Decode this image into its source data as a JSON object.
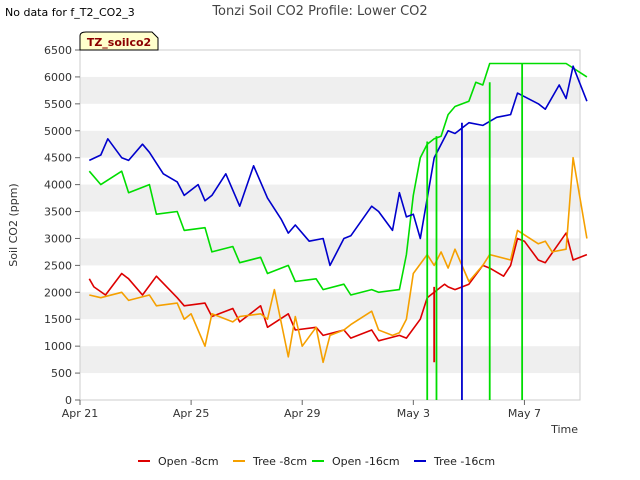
{
  "no_data_note": "No data for f_T2_CO2_3",
  "badge": {
    "label": "TZ_soilco2",
    "fill": "#ffffcc",
    "text_color": "#8b0000"
  },
  "chart_data": {
    "type": "line",
    "title": "Tonzi Soil CO2 Profile: Lower CO2",
    "xlabel": "Time",
    "ylabel": "Soil CO2 (ppm)",
    "xlim": [
      "2023-04-21",
      "2023-05-09"
    ],
    "ylim": [
      0,
      6500
    ],
    "xticks": [
      {
        "value": "2023-04-21",
        "label": "Apr 21"
      },
      {
        "value": "2023-04-25",
        "label": "Apr 25"
      },
      {
        "value": "2023-04-29",
        "label": "Apr 29"
      },
      {
        "value": "2023-05-03",
        "label": "May 3"
      },
      {
        "value": "2023-05-07",
        "label": "May 7"
      }
    ],
    "yticks": [
      0,
      500,
      1000,
      1500,
      2000,
      2500,
      3000,
      3500,
      4000,
      4500,
      5000,
      5500,
      6000,
      6500
    ],
    "grid": "horizontal bands",
    "legend_position": "bottom",
    "series": [
      {
        "name": "Open -8cm",
        "color": "#dd0000",
        "x": [
          "2023-04-21 08:00",
          "2023-04-21 12:00",
          "2023-04-21 22:00",
          "2023-04-22 12:00",
          "2023-04-22 18:00",
          "2023-04-23 06:00",
          "2023-04-23 18:00",
          "2023-04-24 12:00",
          "2023-04-24 18:00",
          "2023-04-25 12:00",
          "2023-04-25 18:00",
          "2023-04-26 12:00",
          "2023-04-26 18:00",
          "2023-04-27 12:00",
          "2023-04-27 18:00",
          "2023-04-28 12:00",
          "2023-04-28 18:00",
          "2023-04-29 12:00",
          "2023-04-29 18:00",
          "2023-04-30 12:00",
          "2023-04-30 18:00",
          "2023-05-01 12:00",
          "2023-05-01 18:00",
          "2023-05-02 12:00",
          "2023-05-02 18:00",
          "2023-05-03 06:00",
          "2023-05-03 12:00",
          "2023-05-03 18:00",
          "2023-05-04 00:00",
          "2023-05-04 03:00",
          "2023-05-04 06:00",
          "2023-05-04 12:00",
          "2023-05-05 00:00",
          "2023-05-05 12:00",
          "2023-05-05 18:00",
          "2023-05-06 06:00",
          "2023-05-06 12:00",
          "2023-05-06 18:00",
          "2023-05-07 00:00",
          "2023-05-07 12:00",
          "2023-05-07 18:00",
          "2023-05-08 12:00",
          "2023-05-08 18:00",
          "2023-05-09 06:00"
        ],
        "y": [
          2250,
          2100,
          1950,
          2350,
          2250,
          1950,
          2300,
          1900,
          1750,
          1800,
          1550,
          1700,
          1450,
          1750,
          1350,
          1600,
          1300,
          1350,
          1200,
          1300,
          1150,
          1300,
          1100,
          1200,
          1150,
          1500,
          1900,
          2000,
          2100,
          2150,
          2100,
          2050,
          2150,
          2500,
          2450,
          2300,
          2500,
          3000,
          2950,
          2600,
          2550,
          3100,
          2600,
          2700
        ]
      },
      {
        "name": "Tree -8cm",
        "color": "#f5a000",
        "x": [
          "2023-04-21 08:00",
          "2023-04-21 18:00",
          "2023-04-22 12:00",
          "2023-04-22 18:00",
          "2023-04-23 12:00",
          "2023-04-23 18:00",
          "2023-04-24 12:00",
          "2023-04-24 18:00",
          "2023-04-25 00:00",
          "2023-04-25 12:00",
          "2023-04-25 18:00",
          "2023-04-26 12:00",
          "2023-04-26 18:00",
          "2023-04-27 12:00",
          "2023-04-27 18:00",
          "2023-04-28 00:00",
          "2023-04-28 12:00",
          "2023-04-28 18:00",
          "2023-04-29 00:00",
          "2023-04-29 12:00",
          "2023-04-29 18:00",
          "2023-04-30 00:00",
          "2023-04-30 12:00",
          "2023-04-30 18:00",
          "2023-05-01 12:00",
          "2023-05-01 18:00",
          "2023-05-02 06:00",
          "2023-05-02 12:00",
          "2023-05-02 18:00",
          "2023-05-03 00:00",
          "2023-05-03 12:00",
          "2023-05-03 18:00",
          "2023-05-04 00:00",
          "2023-05-04 06:00",
          "2023-05-04 12:00",
          "2023-05-05 00:00",
          "2023-05-05 12:00",
          "2023-05-05 18:00",
          "2023-05-06 12:00",
          "2023-05-06 18:00",
          "2023-05-07 12:00",
          "2023-05-07 18:00",
          "2023-05-08 00:00",
          "2023-05-08 12:00",
          "2023-05-08 18:00",
          "2023-05-09 06:00"
        ],
        "y": [
          1950,
          1900,
          2000,
          1850,
          1950,
          1750,
          1800,
          1500,
          1600,
          1000,
          1600,
          1450,
          1550,
          1600,
          1500,
          2050,
          800,
          1550,
          1000,
          1350,
          700,
          1200,
          1300,
          1400,
          1650,
          1300,
          1200,
          1250,
          1500,
          2350,
          2700,
          2500,
          2750,
          2450,
          2800,
          2200,
          2500,
          2700,
          2600,
          3150,
          2900,
          2950,
          2750,
          2800,
          4500,
          3000
        ]
      },
      {
        "name": "Open -16cm",
        "color": "#00dd00",
        "x": [
          "2023-04-21 08:00",
          "2023-04-21 18:00",
          "2023-04-22 12:00",
          "2023-04-22 18:00",
          "2023-04-23 12:00",
          "2023-04-23 18:00",
          "2023-04-24 12:00",
          "2023-04-24 18:00",
          "2023-04-25 12:00",
          "2023-04-25 18:00",
          "2023-04-26 12:00",
          "2023-04-26 18:00",
          "2023-04-27 12:00",
          "2023-04-27 18:00",
          "2023-04-28 12:00",
          "2023-04-28 18:00",
          "2023-04-29 12:00",
          "2023-04-29 18:00",
          "2023-04-30 12:00",
          "2023-04-30 18:00",
          "2023-05-01 12:00",
          "2023-05-01 18:00",
          "2023-05-02 12:00",
          "2023-05-02 18:00",
          "2023-05-03 00:00",
          "2023-05-03 06:00",
          "2023-05-03 12:00",
          "2023-05-03 18:00",
          "2023-05-04 00:00",
          "2023-05-04 06:00",
          "2023-05-04 12:00",
          "2023-05-05 00:00",
          "2023-05-05 06:00",
          "2023-05-05 12:00",
          "2023-05-05 18:00",
          "2023-05-06 00:00",
          "2023-05-07 00:00",
          "2023-05-07 06:00",
          "2023-05-07 12:00",
          "2023-05-08 00:00",
          "2023-05-08 12:00",
          "2023-05-09 06:00"
        ],
        "y": [
          4250,
          4000,
          4250,
          3850,
          4000,
          3450,
          3500,
          3150,
          3200,
          2750,
          2850,
          2550,
          2650,
          2350,
          2500,
          2200,
          2250,
          2050,
          2150,
          1950,
          2050,
          2000,
          2050,
          2700,
          3800,
          4500,
          4750,
          4850,
          4900,
          5300,
          5450,
          5550,
          5900,
          5850,
          6250,
          6250,
          6250,
          6250,
          6250,
          6250,
          6250,
          6000
        ]
      },
      {
        "name": "Tree -16cm",
        "color": "#0000cc",
        "x": [
          "2023-04-21 08:00",
          "2023-04-21 18:00",
          "2023-04-22 00:00",
          "2023-04-22 12:00",
          "2023-04-22 18:00",
          "2023-04-23 06:00",
          "2023-04-23 12:00",
          "2023-04-24 00:00",
          "2023-04-24 12:00",
          "2023-04-24 18:00",
          "2023-04-25 06:00",
          "2023-04-25 12:00",
          "2023-04-25 18:00",
          "2023-04-26 06:00",
          "2023-04-26 18:00",
          "2023-04-27 06:00",
          "2023-04-27 18:00",
          "2023-04-28 06:00",
          "2023-04-28 12:00",
          "2023-04-28 18:00",
          "2023-04-29 06:00",
          "2023-04-29 18:00",
          "2023-04-30 00:00",
          "2023-04-30 12:00",
          "2023-04-30 18:00",
          "2023-05-01 12:00",
          "2023-05-01 18:00",
          "2023-05-02 06:00",
          "2023-05-02 12:00",
          "2023-05-02 18:00",
          "2023-05-03 00:00",
          "2023-05-03 06:00",
          "2023-05-03 18:00",
          "2023-05-04 06:00",
          "2023-05-04 12:00",
          "2023-05-05 00:00",
          "2023-05-05 12:00",
          "2023-05-06 00:00",
          "2023-05-06 12:00",
          "2023-05-06 18:00",
          "2023-05-07 12:00",
          "2023-05-07 18:00",
          "2023-05-08 06:00",
          "2023-05-08 12:00",
          "2023-05-08 18:00",
          "2023-05-09 06:00"
        ],
        "y": [
          4450,
          4550,
          4850,
          4500,
          4450,
          4750,
          4600,
          4200,
          4050,
          3800,
          4000,
          3700,
          3800,
          4200,
          3600,
          4350,
          3750,
          3350,
          3100,
          3250,
          2950,
          3000,
          2500,
          3000,
          3050,
          3600,
          3500,
          3150,
          3850,
          3400,
          3450,
          3000,
          4500,
          5000,
          4950,
          5150,
          5100,
          5250,
          5300,
          5700,
          5500,
          5400,
          5850,
          5600,
          6200,
          5550
        ]
      }
    ],
    "breaks": [
      {
        "series": "Open -8cm",
        "x": "2023-05-03 18:00",
        "y_low": 700,
        "y_high": 2100
      },
      {
        "series": "Open -16cm",
        "x": "2023-05-03 12:00",
        "y_low": 0,
        "y_high": 4800
      },
      {
        "series": "Open -16cm",
        "x": "2023-05-03 20:00",
        "y_low": 0,
        "y_high": 4900
      },
      {
        "series": "Tree -16cm",
        "x": "2023-05-04 18:00",
        "y_low": 0,
        "y_high": 5150
      },
      {
        "series": "Open -16cm",
        "x": "2023-05-05 18:00",
        "y_low": 0,
        "y_high": 5900
      },
      {
        "series": "Open -16cm",
        "x": "2023-05-06 22:00",
        "y_low": 0,
        "y_high": 6250
      }
    ]
  }
}
